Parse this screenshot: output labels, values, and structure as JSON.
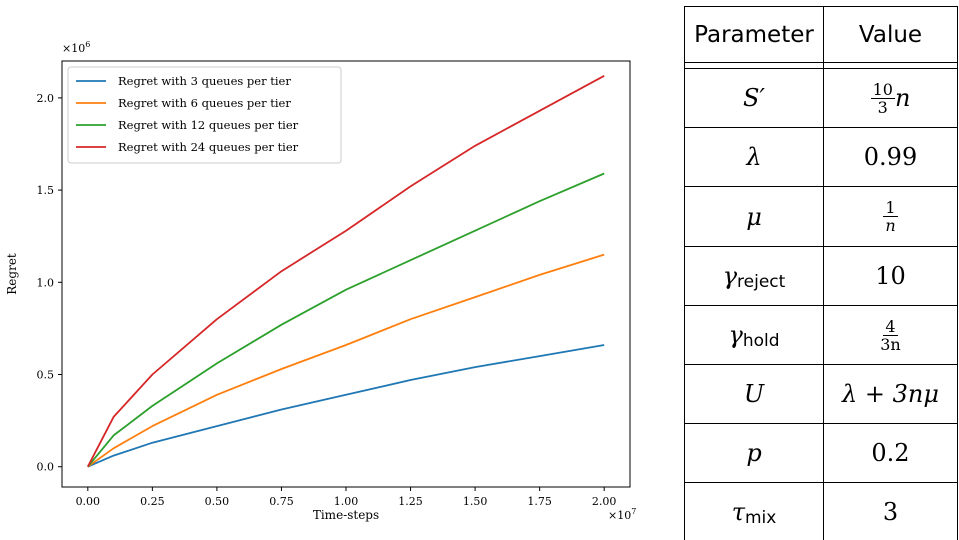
{
  "chart_data": {
    "type": "line",
    "title": "",
    "xlabel": "Time-steps",
    "ylabel": "Regret",
    "x_multiplier": "×10",
    "x_multiplier_exp": "7",
    "y_multiplier": "×10",
    "y_multiplier_exp": "6",
    "xlim": [
      -0.1,
      2.1
    ],
    "ylim": [
      -0.11,
      2.2
    ],
    "xticks": [
      0.0,
      0.25,
      0.5,
      0.75,
      1.0,
      1.25,
      1.5,
      1.75,
      2.0
    ],
    "xtick_labels": [
      "0.00",
      "0.25",
      "0.50",
      "0.75",
      "1.00",
      "1.25",
      "1.50",
      "1.75",
      "2.00"
    ],
    "yticks": [
      0.0,
      0.5,
      1.0,
      1.5,
      2.0
    ],
    "ytick_labels": [
      "0.0",
      "0.5",
      "1.0",
      "1.5",
      "2.0"
    ],
    "grid": false,
    "legend_position": "upper-left",
    "series": [
      {
        "name": "Regret with 3 queues per tier",
        "color": "#1f77b4",
        "x": [
          0.0,
          0.1,
          0.25,
          0.5,
          0.75,
          1.0,
          1.25,
          1.5,
          1.75,
          2.0
        ],
        "values": [
          0.0,
          0.06,
          0.13,
          0.22,
          0.31,
          0.39,
          0.47,
          0.54,
          0.6,
          0.66
        ]
      },
      {
        "name": "Regret with 6 queues per tier",
        "color": "#ff7f0e",
        "x": [
          0.0,
          0.1,
          0.25,
          0.5,
          0.75,
          1.0,
          1.25,
          1.5,
          1.75,
          2.0
        ],
        "values": [
          0.0,
          0.1,
          0.22,
          0.39,
          0.53,
          0.66,
          0.8,
          0.92,
          1.04,
          1.15
        ]
      },
      {
        "name": "Regret with 12 queues per tier",
        "color": "#2ca02c",
        "x": [
          0.0,
          0.1,
          0.25,
          0.5,
          0.75,
          1.0,
          1.25,
          1.5,
          1.75,
          2.0
        ],
        "values": [
          0.0,
          0.17,
          0.33,
          0.56,
          0.77,
          0.96,
          1.12,
          1.28,
          1.44,
          1.59
        ]
      },
      {
        "name": "Regret with 24 queues per tier",
        "color": "#d62728",
        "x": [
          0.0,
          0.1,
          0.25,
          0.5,
          0.75,
          1.0,
          1.25,
          1.5,
          1.75,
          2.0
        ],
        "values": [
          0.0,
          0.27,
          0.5,
          0.8,
          1.06,
          1.28,
          1.52,
          1.74,
          1.93,
          2.12
        ]
      }
    ]
  },
  "table": {
    "headers": [
      "Parameter",
      "Value"
    ],
    "rows": [
      {
        "param": "S′",
        "value_num": "10",
        "value_den": "3",
        "value_suffix": "n"
      },
      {
        "param": "λ",
        "value": "0.99"
      },
      {
        "param": "μ",
        "value_num": "1",
        "value_den": "n"
      },
      {
        "param": "γ",
        "param_sub": "reject",
        "value": "10"
      },
      {
        "param": "γ",
        "param_sub": "hold",
        "value_num": "4",
        "value_den": "3n"
      },
      {
        "param": "U",
        "value": "λ + 3nμ"
      },
      {
        "param": "p",
        "value": "0.2"
      },
      {
        "param": "τ",
        "param_sub": "mix",
        "value": "3"
      }
    ]
  }
}
